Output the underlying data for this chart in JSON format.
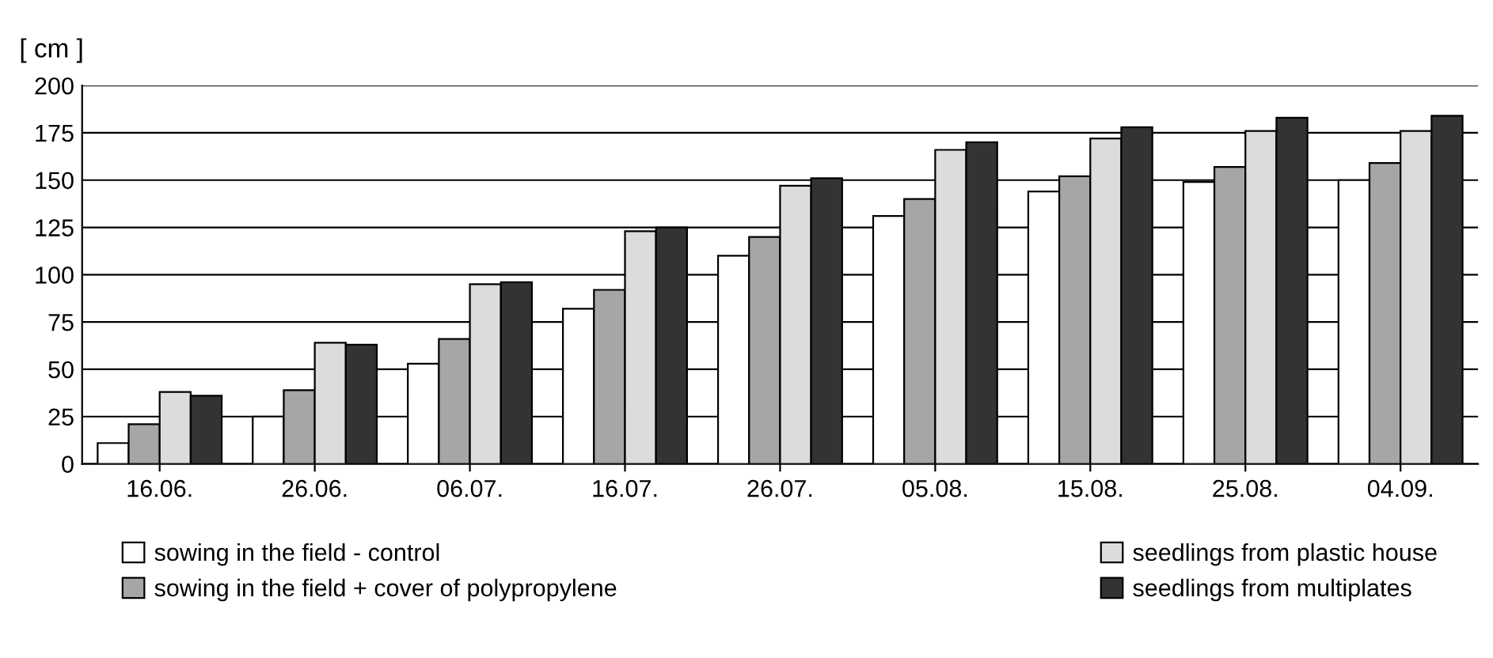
{
  "chart_data": {
    "type": "bar",
    "ylabel": "[ cm ]",
    "categories": [
      "16.06.",
      "26.06.",
      "06.07.",
      "16.07.",
      "26.07.",
      "05.08.",
      "15.08.",
      "25.08.",
      "04.09."
    ],
    "series": [
      {
        "name": "sowing in the field - control",
        "color": "#ffffff",
        "values": [
          11,
          25,
          53,
          82,
          110,
          131,
          144,
          149,
          150
        ]
      },
      {
        "name": "sowing in the field + cover of polypropylene",
        "color": "#a6a6a6",
        "values": [
          21,
          39,
          66,
          92,
          120,
          140,
          152,
          157,
          159
        ]
      },
      {
        "name": "seedlings from plastic house",
        "color": "#dcdcdc",
        "values": [
          38,
          64,
          95,
          123,
          147,
          166,
          172,
          176,
          176
        ]
      },
      {
        "name": "seedlings from multiplates",
        "color": "#333333",
        "values": [
          36,
          63,
          96,
          125,
          151,
          170,
          178,
          183,
          184
        ]
      }
    ],
    "ylim": [
      0,
      200
    ],
    "yticks": [
      0,
      25,
      50,
      75,
      100,
      125,
      150,
      175,
      200
    ],
    "grid": "y",
    "legend": "bottom"
  }
}
